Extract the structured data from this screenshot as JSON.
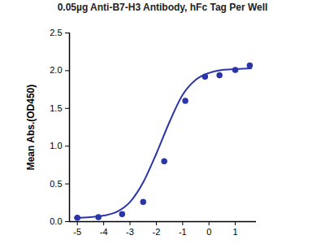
{
  "chart_data": {
    "type": "scatter",
    "title": "0.05µg Anti-B7-H3 Antibody, hFc Tag Per Well",
    "y_label": "Mean Abs.(OD450)",
    "color": "#2a35a8",
    "xlim": [
      -5.3,
      1.8
    ],
    "xticks": [
      -5,
      -4,
      -3,
      -2,
      -1,
      0,
      1
    ],
    "ylim": [
      0,
      2.5
    ],
    "yticks": [
      {
        "value": 0,
        "label": "0.0"
      },
      0.5,
      {
        "value": 1,
        "label": "1.0"
      },
      1.5,
      {
        "value": 2,
        "label": "2.0"
      },
      2.5
    ],
    "grid": false,
    "series": [
      {
        "type": "scatter",
        "marker": "circle",
        "x": [
          -5.0,
          -4.2,
          -3.3,
          -2.5,
          -1.7,
          -0.9,
          -0.15,
          0.4,
          1.0,
          1.55
        ],
        "values": [
          0.05,
          0.06,
          0.1,
          0.26,
          0.8,
          1.6,
          1.92,
          1.94,
          2.01,
          2.07
        ]
      },
      {
        "type": "line",
        "line_style": "solid",
        "x": [
          -5.1,
          -4.5,
          -4.0,
          -3.5,
          -3.0,
          -2.5,
          -2.0,
          -1.5,
          -1.0,
          -0.5,
          0.0,
          0.5,
          1.0,
          1.6
        ],
        "values": [
          0.05,
          0.06,
          0.08,
          0.13,
          0.26,
          0.52,
          0.9,
          1.32,
          1.68,
          1.88,
          1.97,
          2.01,
          2.02,
          2.03
        ]
      }
    ]
  }
}
